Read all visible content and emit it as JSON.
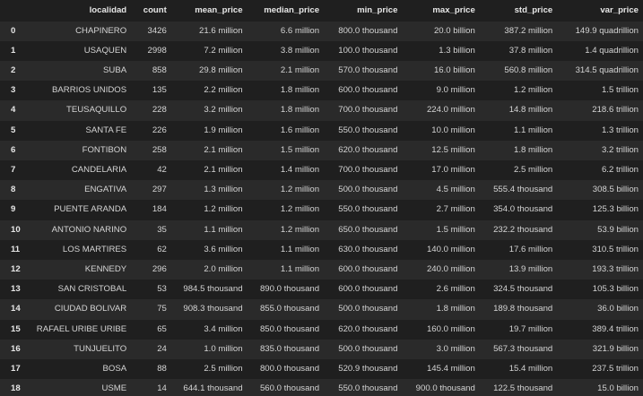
{
  "table": {
    "columns": [
      "",
      "localidad",
      "count",
      "mean_price",
      "median_price",
      "min_price",
      "max_price",
      "std_price",
      "var_price"
    ],
    "rows": [
      [
        "0",
        "CHAPINERO",
        "3426",
        "21.6 million",
        "6.6 million",
        "800.0 thousand",
        "20.0 billion",
        "387.2 million",
        "149.9 quadrillion"
      ],
      [
        "1",
        "USAQUEN",
        "2998",
        "7.2 million",
        "3.8 million",
        "100.0 thousand",
        "1.3 billion",
        "37.8 million",
        "1.4 quadrillion"
      ],
      [
        "2",
        "SUBA",
        "858",
        "29.8 million",
        "2.1 million",
        "570.0 thousand",
        "16.0 billion",
        "560.8 million",
        "314.5 quadrillion"
      ],
      [
        "3",
        "BARRIOS UNIDOS",
        "135",
        "2.2 million",
        "1.8 million",
        "600.0 thousand",
        "9.0 million",
        "1.2 million",
        "1.5 trillion"
      ],
      [
        "4",
        "TEUSAQUILLO",
        "228",
        "3.2 million",
        "1.8 million",
        "700.0 thousand",
        "224.0 million",
        "14.8 million",
        "218.6 trillion"
      ],
      [
        "5",
        "SANTA FE",
        "226",
        "1.9 million",
        "1.6 million",
        "550.0 thousand",
        "10.0 million",
        "1.1 million",
        "1.3 trillion"
      ],
      [
        "6",
        "FONTIBON",
        "258",
        "2.1 million",
        "1.5 million",
        "620.0 thousand",
        "12.5 million",
        "1.8 million",
        "3.2 trillion"
      ],
      [
        "7",
        "CANDELARIA",
        "42",
        "2.1 million",
        "1.4 million",
        "700.0 thousand",
        "17.0 million",
        "2.5 million",
        "6.2 trillion"
      ],
      [
        "8",
        "ENGATIVA",
        "297",
        "1.3 million",
        "1.2 million",
        "500.0 thousand",
        "4.5 million",
        "555.4 thousand",
        "308.5 billion"
      ],
      [
        "9",
        "PUENTE ARANDA",
        "184",
        "1.2 million",
        "1.2 million",
        "550.0 thousand",
        "2.7 million",
        "354.0 thousand",
        "125.3 billion"
      ],
      [
        "10",
        "ANTONIO NARINO",
        "35",
        "1.1 million",
        "1.2 million",
        "650.0 thousand",
        "1.5 million",
        "232.2 thousand",
        "53.9 billion"
      ],
      [
        "11",
        "LOS MARTIRES",
        "62",
        "3.6 million",
        "1.1 million",
        "630.0 thousand",
        "140.0 million",
        "17.6 million",
        "310.5 trillion"
      ],
      [
        "12",
        "KENNEDY",
        "296",
        "2.0 million",
        "1.1 million",
        "600.0 thousand",
        "240.0 million",
        "13.9 million",
        "193.3 trillion"
      ],
      [
        "13",
        "SAN CRISTOBAL",
        "53",
        "984.5 thousand",
        "890.0 thousand",
        "600.0 thousand",
        "2.6 million",
        "324.5 thousand",
        "105.3 billion"
      ],
      [
        "14",
        "CIUDAD BOLIVAR",
        "75",
        "908.3 thousand",
        "855.0 thousand",
        "500.0 thousand",
        "1.8 million",
        "189.8 thousand",
        "36.0 billion"
      ],
      [
        "15",
        "RAFAEL URIBE URIBE",
        "65",
        "3.4 million",
        "850.0 thousand",
        "620.0 thousand",
        "160.0 million",
        "19.7 million",
        "389.4 trillion"
      ],
      [
        "16",
        "TUNJUELITO",
        "24",
        "1.0 million",
        "835.0 thousand",
        "500.0 thousand",
        "3.0 million",
        "567.3 thousand",
        "321.9 billion"
      ],
      [
        "17",
        "BOSA",
        "88",
        "2.5 million",
        "800.0 thousand",
        "520.9 thousand",
        "145.4 million",
        "15.4 million",
        "237.5 trillion"
      ],
      [
        "18",
        "USME",
        "14",
        "644.1 thousand",
        "560.0 thousand",
        "550.0 thousand",
        "900.0 thousand",
        "122.5 thousand",
        "15.0 billion"
      ]
    ]
  }
}
